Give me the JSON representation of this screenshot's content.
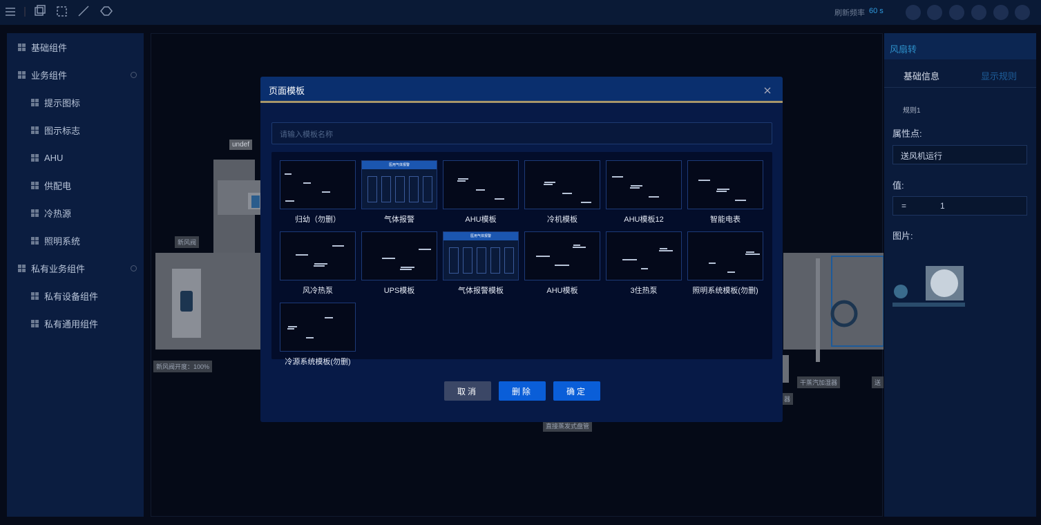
{
  "toolbar": {
    "refresh_label": "刷新频率",
    "refresh_value": "60 s"
  },
  "sidebar": {
    "groups": [
      {
        "name": "基础组件"
      },
      {
        "name": "业务组件",
        "children": [
          "提示图标",
          "图示标志",
          "AHU",
          "供配电",
          "冷热源",
          "照明系统"
        ]
      },
      {
        "name": "私有业务组件",
        "children": [
          "私有设备组件",
          "私有通用组件"
        ]
      }
    ]
  },
  "canvas": {
    "labels": [
      "undef",
      "新风阀",
      "新风阀开度：100%",
      "干蒸汽加湿器",
      "直接蒸发式盘管",
      "送",
      "器"
    ]
  },
  "right_panel": {
    "title": "风扇转",
    "tabs": [
      "基础信息",
      "显示规则"
    ],
    "rule": "规则1",
    "property_label": "属性点:",
    "property_value": "送风机运行",
    "value_label": "值:",
    "operator": "=",
    "value": "1",
    "image_label": "图片:"
  },
  "modal": {
    "title": "页面模板",
    "search_placeholder": "请输入模板名称",
    "templates": [
      {
        "name": "归幼（勿删）"
      },
      {
        "name": "气体报警",
        "thumb_text": "医用气体报警"
      },
      {
        "name": "AHU模板"
      },
      {
        "name": "冷机模板"
      },
      {
        "name": "AHU模板12"
      },
      {
        "name": "智能电表"
      },
      {
        "name": "风冷热泵"
      },
      {
        "name": "UPS模板"
      },
      {
        "name": "气体报警模板",
        "thumb_text": "医用气体报警"
      },
      {
        "name": "AHU模板"
      },
      {
        "name": "3住热泵"
      },
      {
        "name": "照明系统模板(勿删)"
      },
      {
        "name": "冷源系统模板(勿删)"
      }
    ],
    "buttons": [
      "取消",
      "删除",
      "确定"
    ]
  }
}
